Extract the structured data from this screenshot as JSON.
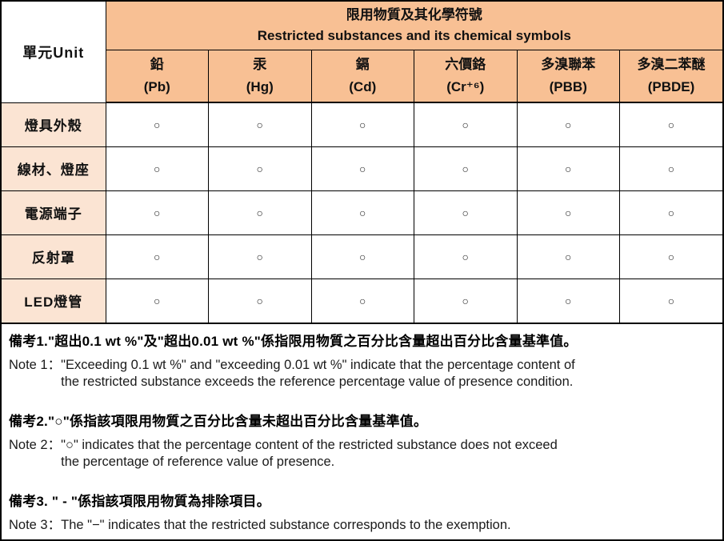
{
  "table": {
    "unit_header": "單元Unit",
    "group_header_zh": "限用物質及其化學符號",
    "group_header_en": "Restricted substances and its chemical symbols",
    "columns": [
      {
        "zh": "鉛",
        "symbol": "(Pb)"
      },
      {
        "zh": "汞",
        "symbol": "(Hg)"
      },
      {
        "zh": "鎘",
        "symbol": "(Cd)"
      },
      {
        "zh": "六價鉻",
        "symbol": "(Cr⁺⁶)"
      },
      {
        "zh": "多溴聯苯",
        "symbol": "(PBB)"
      },
      {
        "zh": "多溴二苯醚",
        "symbol": "(PBDE)"
      }
    ],
    "rows": [
      {
        "label": "燈具外殼",
        "values": [
          "○",
          "○",
          "○",
          "○",
          "○",
          "○"
        ]
      },
      {
        "label": "線材、燈座",
        "values": [
          "○",
          "○",
          "○",
          "○",
          "○",
          "○"
        ]
      },
      {
        "label": "電源端子",
        "values": [
          "○",
          "○",
          "○",
          "○",
          "○",
          "○"
        ]
      },
      {
        "label": "反射罩",
        "values": [
          "○",
          "○",
          "○",
          "○",
          "○",
          "○"
        ]
      },
      {
        "label": "LED燈管",
        "values": [
          "○",
          "○",
          "○",
          "○",
          "○",
          "○"
        ]
      }
    ]
  },
  "notes": [
    {
      "zh": "備考1.\"超出0.1 wt %\"及\"超出0.01 wt %\"係指限用物質之百分比含量超出百分比含量基準值。",
      "en_prefix": "Note 1：",
      "en_lines": [
        "\"Exceeding 0.1 wt %\" and \"exceeding 0.01 wt %\" indicate that the percentage content of",
        "the restricted substance exceeds the reference percentage value of presence condition."
      ]
    },
    {
      "zh": "備考2.\"○\"係指該項限用物質之百分比含量未超出百分比含量基準值。",
      "en_prefix": "Note 2：",
      "en_lines": [
        "\"○\" indicates that the percentage content of the restricted substance does not exceed",
        "the percentage of reference value of presence."
      ]
    },
    {
      "zh": "備考3. \" - \"係指該項限用物質為排除項目。",
      "en_prefix": "Note 3：",
      "en_lines": [
        "The \"−\" indicates that the restricted substance corresponds to the exemption."
      ]
    }
  ],
  "colors": {
    "header_bg": "#F8C094",
    "row_label_bg": "#FBE4D3",
    "border": "#000000",
    "text": "#111111"
  }
}
